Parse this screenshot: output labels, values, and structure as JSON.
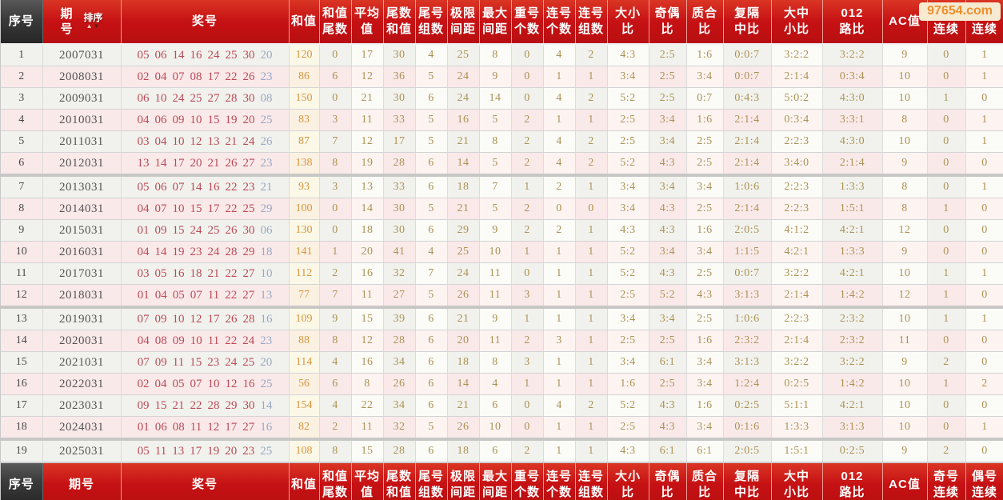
{
  "watermark": {
    "text": "97654.com"
  },
  "sort_label": "排序",
  "palette": {
    "header_red": "#c61114",
    "header_dark": "#3a3a3a",
    "ball": "#bb4a58",
    "special_ball": "#9aa9c6",
    "sum_value": "#d8963e",
    "value": "#ac9254",
    "watermark_text": "#ef8f2f",
    "watermark_bg": "#f6ead0",
    "row_gray": "#f1f2ed",
    "row_pink": "#fae9e9"
  },
  "columns": [
    {
      "id": "serial",
      "label": "序号",
      "lines": [
        "序号"
      ]
    },
    {
      "id": "period",
      "label": "期号",
      "lines": [
        "期",
        "号"
      ],
      "footer_single": true
    },
    {
      "id": "draw",
      "label": "奖号",
      "lines": [
        "奖号"
      ]
    },
    {
      "id": "sum",
      "label": "和值",
      "lines": [
        "和值"
      ]
    },
    {
      "id": "sum-tail",
      "label": "和值尾数",
      "lines": [
        "和值",
        "尾数"
      ]
    },
    {
      "id": "avg",
      "label": "平均值",
      "lines": [
        "平均",
        "值"
      ]
    },
    {
      "id": "tail-sum",
      "label": "尾数和值",
      "lines": [
        "尾数",
        "和值"
      ]
    },
    {
      "id": "tail-groups",
      "label": "尾号组数",
      "lines": [
        "尾号",
        "组数"
      ]
    },
    {
      "id": "limit-gap",
      "label": "极限间距",
      "lines": [
        "极限",
        "间距"
      ]
    },
    {
      "id": "max-gap",
      "label": "最大间距",
      "lines": [
        "最大",
        "间距"
      ]
    },
    {
      "id": "repeat-count",
      "label": "重号个数",
      "lines": [
        "重号",
        "个数"
      ]
    },
    {
      "id": "consec-count",
      "label": "连号个数",
      "lines": [
        "连号",
        "个数"
      ]
    },
    {
      "id": "consec-groups",
      "label": "连号组数",
      "lines": [
        "连号",
        "组数"
      ]
    },
    {
      "id": "big-small",
      "label": "大小比",
      "lines": [
        "大小",
        "比"
      ]
    },
    {
      "id": "odd-even",
      "label": "奇偶比",
      "lines": [
        "奇偶",
        "比"
      ]
    },
    {
      "id": "prime-comp",
      "label": "质合比",
      "lines": [
        "质合",
        "比"
      ]
    },
    {
      "id": "rep-int-mid",
      "label": "复隔中比",
      "lines": [
        "复隔",
        "中比"
      ]
    },
    {
      "id": "big-mid-small",
      "label": "大中小比",
      "lines": [
        "大中",
        "小比"
      ]
    },
    {
      "id": "road-012",
      "label": "012路比",
      "lines": [
        "012",
        "路比"
      ]
    },
    {
      "id": "ac",
      "label": "AC值",
      "lines": [
        "AC值"
      ]
    },
    {
      "id": "odd-run",
      "label": "奇号连续",
      "lines": [
        "奇号",
        "连续"
      ]
    },
    {
      "id": "even-run",
      "label": "偶号连续",
      "lines": [
        "偶号",
        "连续"
      ]
    }
  ],
  "rows": [
    {
      "no": "1",
      "period": "2007031",
      "balls": [
        "05",
        "06",
        "14",
        "16",
        "24",
        "25",
        "30"
      ],
      "special": "20",
      "cells": [
        "120",
        "0",
        "17",
        "30",
        "4",
        "25",
        "8",
        "0",
        "4",
        "2",
        "4:3",
        "2:5",
        "1:6",
        "0:0:7",
        "3:2:2",
        "3:2:2",
        "9",
        "0",
        "1"
      ]
    },
    {
      "no": "2",
      "period": "2008031",
      "balls": [
        "02",
        "04",
        "07",
        "08",
        "17",
        "22",
        "26"
      ],
      "special": "23",
      "cells": [
        "86",
        "6",
        "12",
        "36",
        "5",
        "24",
        "9",
        "0",
        "1",
        "1",
        "3:4",
        "2:5",
        "3:4",
        "0:0:7",
        "2:1:4",
        "0:3:4",
        "10",
        "0",
        "1"
      ]
    },
    {
      "no": "3",
      "period": "2009031",
      "balls": [
        "06",
        "10",
        "24",
        "25",
        "27",
        "28",
        "30"
      ],
      "special": "08",
      "cells": [
        "150",
        "0",
        "21",
        "30",
        "6",
        "24",
        "14",
        "0",
        "4",
        "2",
        "5:2",
        "2:5",
        "0:7",
        "0:4:3",
        "5:0:2",
        "4:3:0",
        "10",
        "1",
        "0"
      ]
    },
    {
      "no": "4",
      "period": "2010031",
      "balls": [
        "04",
        "06",
        "09",
        "10",
        "15",
        "19",
        "20"
      ],
      "special": "25",
      "cells": [
        "83",
        "3",
        "11",
        "33",
        "5",
        "16",
        "5",
        "2",
        "1",
        "1",
        "2:5",
        "3:4",
        "1:6",
        "2:1:4",
        "0:3:4",
        "3:3:1",
        "8",
        "0",
        "1"
      ]
    },
    {
      "no": "5",
      "period": "2011031",
      "balls": [
        "03",
        "04",
        "10",
        "12",
        "13",
        "21",
        "24"
      ],
      "special": "26",
      "cells": [
        "87",
        "7",
        "12",
        "17",
        "5",
        "21",
        "8",
        "2",
        "4",
        "2",
        "2:5",
        "3:4",
        "2:5",
        "2:1:4",
        "2:2:3",
        "4:3:0",
        "10",
        "0",
        "1"
      ]
    },
    {
      "no": "6",
      "period": "2012031",
      "balls": [
        "13",
        "14",
        "17",
        "20",
        "21",
        "26",
        "27"
      ],
      "special": "23",
      "cells": [
        "138",
        "8",
        "19",
        "28",
        "6",
        "14",
        "5",
        "2",
        "4",
        "2",
        "5:2",
        "4:3",
        "2:5",
        "2:1:4",
        "3:4:0",
        "2:1:4",
        "9",
        "0",
        "0"
      ]
    },
    {
      "no": "7",
      "period": "2013031",
      "balls": [
        "05",
        "06",
        "07",
        "14",
        "16",
        "22",
        "23"
      ],
      "special": "21",
      "sep": true,
      "cells": [
        "93",
        "3",
        "13",
        "33",
        "6",
        "18",
        "7",
        "1",
        "2",
        "1",
        "3:4",
        "3:4",
        "3:4",
        "1:0:6",
        "2:2:3",
        "1:3:3",
        "8",
        "0",
        "1"
      ]
    },
    {
      "no": "8",
      "period": "2014031",
      "balls": [
        "04",
        "07",
        "10",
        "15",
        "17",
        "22",
        "25"
      ],
      "special": "29",
      "cells": [
        "100",
        "0",
        "14",
        "30",
        "5",
        "21",
        "5",
        "2",
        "0",
        "0",
        "3:4",
        "4:3",
        "2:5",
        "2:1:4",
        "2:2:3",
        "1:5:1",
        "8",
        "1",
        "0"
      ]
    },
    {
      "no": "9",
      "period": "2015031",
      "balls": [
        "01",
        "09",
        "15",
        "24",
        "25",
        "26",
        "30"
      ],
      "special": "06",
      "cells": [
        "130",
        "0",
        "18",
        "30",
        "6",
        "29",
        "9",
        "2",
        "2",
        "1",
        "4:3",
        "4:3",
        "1:6",
        "2:0:5",
        "4:1:2",
        "4:2:1",
        "12",
        "0",
        "0"
      ]
    },
    {
      "no": "10",
      "period": "2016031",
      "balls": [
        "04",
        "14",
        "19",
        "23",
        "24",
        "28",
        "29"
      ],
      "special": "18",
      "cells": [
        "141",
        "1",
        "20",
        "41",
        "4",
        "25",
        "10",
        "1",
        "1",
        "1",
        "5:2",
        "3:4",
        "3:4",
        "1:1:5",
        "4:2:1",
        "1:3:3",
        "9",
        "0",
        "0"
      ]
    },
    {
      "no": "11",
      "period": "2017031",
      "balls": [
        "03",
        "05",
        "16",
        "18",
        "21",
        "22",
        "27"
      ],
      "special": "10",
      "cells": [
        "112",
        "2",
        "16",
        "32",
        "7",
        "24",
        "11",
        "0",
        "1",
        "1",
        "5:2",
        "4:3",
        "2:5",
        "0:0:7",
        "3:2:2",
        "4:2:1",
        "10",
        "1",
        "1"
      ]
    },
    {
      "no": "12",
      "period": "2018031",
      "balls": [
        "01",
        "04",
        "05",
        "07",
        "11",
        "22",
        "27"
      ],
      "special": "13",
      "cells": [
        "77",
        "7",
        "11",
        "27",
        "5",
        "26",
        "11",
        "3",
        "1",
        "1",
        "2:5",
        "5:2",
        "4:3",
        "3:1:3",
        "2:1:4",
        "1:4:2",
        "12",
        "1",
        "0"
      ]
    },
    {
      "no": "13",
      "period": "2019031",
      "balls": [
        "07",
        "09",
        "10",
        "12",
        "17",
        "26",
        "28"
      ],
      "special": "16",
      "sep": true,
      "cells": [
        "109",
        "9",
        "15",
        "39",
        "6",
        "21",
        "9",
        "1",
        "1",
        "1",
        "3:4",
        "3:4",
        "2:5",
        "1:0:6",
        "2:2:3",
        "2:3:2",
        "10",
        "1",
        "1"
      ]
    },
    {
      "no": "14",
      "period": "2020031",
      "balls": [
        "04",
        "08",
        "09",
        "10",
        "11",
        "22",
        "24"
      ],
      "special": "23",
      "cells": [
        "88",
        "8",
        "12",
        "28",
        "6",
        "20",
        "11",
        "2",
        "3",
        "1",
        "2:5",
        "2:5",
        "1:6",
        "2:3:2",
        "2:1:4",
        "2:3:2",
        "11",
        "0",
        "0"
      ]
    },
    {
      "no": "15",
      "period": "2021031",
      "balls": [
        "07",
        "09",
        "11",
        "15",
        "23",
        "24",
        "25"
      ],
      "special": "20",
      "cells": [
        "114",
        "4",
        "16",
        "34",
        "6",
        "18",
        "8",
        "3",
        "1",
        "1",
        "3:4",
        "6:1",
        "3:4",
        "3:1:3",
        "3:2:2",
        "3:2:2",
        "9",
        "2",
        "0"
      ]
    },
    {
      "no": "16",
      "period": "2022031",
      "balls": [
        "02",
        "04",
        "05",
        "07",
        "10",
        "12",
        "16"
      ],
      "special": "25",
      "cells": [
        "56",
        "6",
        "8",
        "26",
        "6",
        "14",
        "4",
        "1",
        "1",
        "1",
        "1:6",
        "2:5",
        "3:4",
        "1:2:4",
        "0:2:5",
        "1:4:2",
        "10",
        "1",
        "2"
      ]
    },
    {
      "no": "17",
      "period": "2023031",
      "balls": [
        "09",
        "15",
        "21",
        "22",
        "28",
        "29",
        "30"
      ],
      "special": "14",
      "cells": [
        "154",
        "4",
        "22",
        "34",
        "6",
        "21",
        "6",
        "0",
        "4",
        "2",
        "5:2",
        "4:3",
        "1:6",
        "0:2:5",
        "5:1:1",
        "4:2:1",
        "10",
        "0",
        "0"
      ]
    },
    {
      "no": "18",
      "period": "2024031",
      "balls": [
        "01",
        "06",
        "08",
        "11",
        "12",
        "17",
        "27"
      ],
      "special": "16",
      "cells": [
        "82",
        "2",
        "11",
        "32",
        "5",
        "26",
        "10",
        "0",
        "1",
        "1",
        "2:5",
        "4:3",
        "3:4",
        "0:1:6",
        "1:3:3",
        "3:1:3",
        "10",
        "0",
        "1"
      ]
    },
    {
      "no": "19",
      "period": "2025031",
      "balls": [
        "05",
        "11",
        "13",
        "17",
        "19",
        "20",
        "23"
      ],
      "special": "25",
      "sep": true,
      "cells": [
        "108",
        "8",
        "15",
        "28",
        "6",
        "18",
        "6",
        "2",
        "1",
        "1",
        "4:3",
        "6:1",
        "6:1",
        "2:0:5",
        "1:5:1",
        "0:2:5",
        "9",
        "2",
        "0"
      ]
    }
  ]
}
